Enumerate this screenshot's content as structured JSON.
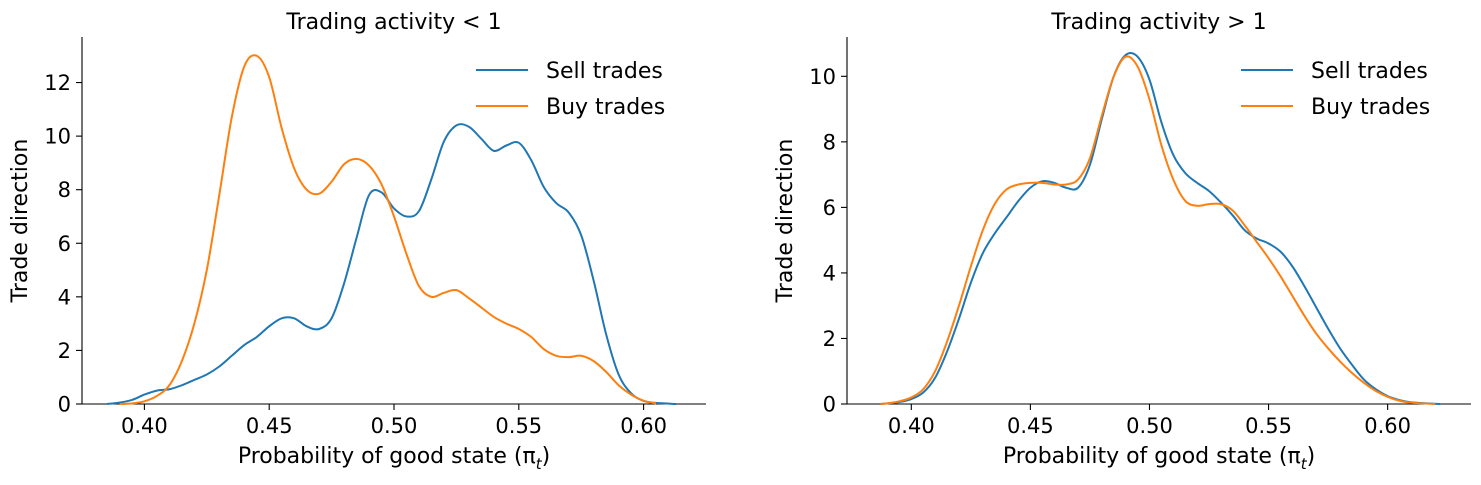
{
  "colors": {
    "sell": "#1f77b4",
    "buy": "#ff7f0e"
  },
  "chart_data": [
    {
      "type": "line",
      "title": "Trading activity < 1",
      "xlabel": "Probability of good state  (π",
      "xlabel_sub": "t",
      "xlabel_close": ")",
      "ylabel": "Trade direction",
      "xlim": [
        0.375,
        0.625
      ],
      "ylim": [
        0,
        13.7
      ],
      "xticks": [
        0.4,
        0.45,
        0.5,
        0.55,
        0.6
      ],
      "xtick_labels": [
        "0.40",
        "0.45",
        "0.50",
        "0.55",
        "0.60"
      ],
      "yticks": [
        0,
        2,
        4,
        6,
        8,
        10,
        12
      ],
      "ytick_labels": [
        "0",
        "2",
        "4",
        "6",
        "8",
        "10",
        "12"
      ],
      "grid": false,
      "legend_position": "upper-right",
      "series": [
        {
          "name": "Sell trades",
          "color": "#1f77b4",
          "x": [
            0.385,
            0.39,
            0.395,
            0.4,
            0.405,
            0.41,
            0.415,
            0.42,
            0.425,
            0.43,
            0.435,
            0.44,
            0.445,
            0.45,
            0.455,
            0.46,
            0.465,
            0.47,
            0.475,
            0.48,
            0.485,
            0.49,
            0.495,
            0.5,
            0.505,
            0.51,
            0.515,
            0.52,
            0.525,
            0.53,
            0.535,
            0.54,
            0.545,
            0.55,
            0.555,
            0.56,
            0.565,
            0.57,
            0.575,
            0.58,
            0.585,
            0.59,
            0.595,
            0.6,
            0.605,
            0.613
          ],
          "y": [
            0.0,
            0.05,
            0.15,
            0.35,
            0.5,
            0.55,
            0.7,
            0.9,
            1.1,
            1.4,
            1.8,
            2.2,
            2.5,
            2.9,
            3.2,
            3.2,
            2.9,
            2.8,
            3.2,
            4.5,
            6.2,
            7.8,
            7.9,
            7.3,
            7.0,
            7.2,
            8.4,
            9.8,
            10.4,
            10.35,
            9.9,
            9.45,
            9.65,
            9.75,
            9.1,
            8.1,
            7.5,
            7.15,
            6.3,
            4.6,
            2.6,
            1.1,
            0.4,
            0.12,
            0.04,
            0.0
          ]
        },
        {
          "name": "Buy trades",
          "color": "#ff7f0e",
          "x": [
            0.39,
            0.395,
            0.4,
            0.405,
            0.41,
            0.415,
            0.42,
            0.425,
            0.43,
            0.435,
            0.44,
            0.445,
            0.45,
            0.455,
            0.46,
            0.465,
            0.47,
            0.475,
            0.48,
            0.485,
            0.49,
            0.495,
            0.5,
            0.505,
            0.51,
            0.515,
            0.52,
            0.525,
            0.53,
            0.535,
            0.54,
            0.545,
            0.55,
            0.555,
            0.56,
            0.565,
            0.57,
            0.575,
            0.58,
            0.585,
            0.59,
            0.595,
            0.6,
            0.605
          ],
          "y": [
            0.0,
            0.02,
            0.1,
            0.3,
            0.7,
            1.6,
            3.0,
            5.0,
            7.8,
            10.7,
            12.6,
            13.0,
            12.2,
            10.3,
            8.8,
            8.0,
            7.85,
            8.3,
            8.95,
            9.15,
            8.9,
            8.2,
            7.0,
            5.6,
            4.4,
            4.0,
            4.15,
            4.25,
            3.95,
            3.6,
            3.25,
            3.0,
            2.8,
            2.5,
            2.05,
            1.8,
            1.75,
            1.8,
            1.6,
            1.2,
            0.7,
            0.35,
            0.12,
            0.02
          ]
        }
      ]
    },
    {
      "type": "line",
      "title": "Trading activity > 1",
      "xlabel": "Probability of good state  (π",
      "xlabel_sub": "t",
      "xlabel_close": ")",
      "ylabel": "Trade direction",
      "xlim": [
        0.373,
        0.635
      ],
      "ylim": [
        0,
        11.2
      ],
      "xticks": [
        0.4,
        0.45,
        0.5,
        0.55,
        0.6
      ],
      "xtick_labels": [
        "0.40",
        "0.45",
        "0.50",
        "0.55",
        "0.60"
      ],
      "yticks": [
        0,
        2,
        4,
        6,
        8,
        10
      ],
      "ytick_labels": [
        "0",
        "2",
        "4",
        "6",
        "8",
        "10"
      ],
      "grid": false,
      "legend_position": "upper-right",
      "series": [
        {
          "name": "Sell trades",
          "color": "#1f77b4",
          "x": [
            0.387,
            0.39,
            0.395,
            0.4,
            0.405,
            0.41,
            0.415,
            0.42,
            0.425,
            0.43,
            0.435,
            0.44,
            0.445,
            0.45,
            0.455,
            0.46,
            0.465,
            0.47,
            0.475,
            0.48,
            0.485,
            0.49,
            0.495,
            0.5,
            0.505,
            0.51,
            0.515,
            0.52,
            0.525,
            0.53,
            0.535,
            0.54,
            0.545,
            0.55,
            0.555,
            0.56,
            0.565,
            0.57,
            0.575,
            0.58,
            0.585,
            0.59,
            0.595,
            0.6,
            0.605,
            0.61,
            0.622
          ],
          "y": [
            0.0,
            0.02,
            0.06,
            0.15,
            0.35,
            0.8,
            1.6,
            2.6,
            3.7,
            4.6,
            5.2,
            5.7,
            6.2,
            6.6,
            6.8,
            6.75,
            6.6,
            6.6,
            7.3,
            8.7,
            10.0,
            10.65,
            10.6,
            9.9,
            8.6,
            7.6,
            7.05,
            6.75,
            6.5,
            6.15,
            5.75,
            5.3,
            5.05,
            4.9,
            4.65,
            4.2,
            3.6,
            2.95,
            2.3,
            1.7,
            1.2,
            0.75,
            0.45,
            0.24,
            0.12,
            0.05,
            0.0
          ]
        },
        {
          "name": "Buy trades",
          "color": "#ff7f0e",
          "x": [
            0.387,
            0.39,
            0.395,
            0.4,
            0.405,
            0.41,
            0.415,
            0.42,
            0.425,
            0.43,
            0.435,
            0.44,
            0.445,
            0.45,
            0.455,
            0.46,
            0.465,
            0.47,
            0.475,
            0.48,
            0.485,
            0.49,
            0.495,
            0.5,
            0.505,
            0.51,
            0.515,
            0.52,
            0.525,
            0.53,
            0.535,
            0.54,
            0.545,
            0.55,
            0.555,
            0.56,
            0.565,
            0.57,
            0.575,
            0.58,
            0.585,
            0.59,
            0.595,
            0.6,
            0.605,
            0.61,
            0.62
          ],
          "y": [
            0.0,
            0.02,
            0.08,
            0.2,
            0.45,
            1.0,
            1.9,
            3.0,
            4.2,
            5.3,
            6.1,
            6.55,
            6.7,
            6.75,
            6.75,
            6.7,
            6.7,
            6.85,
            7.5,
            8.8,
            10.0,
            10.6,
            10.3,
            9.3,
            7.9,
            6.85,
            6.2,
            6.05,
            6.1,
            6.1,
            5.9,
            5.45,
            4.95,
            4.45,
            3.9,
            3.3,
            2.7,
            2.15,
            1.7,
            1.3,
            0.95,
            0.65,
            0.4,
            0.22,
            0.1,
            0.04,
            0.0
          ]
        }
      ]
    }
  ]
}
